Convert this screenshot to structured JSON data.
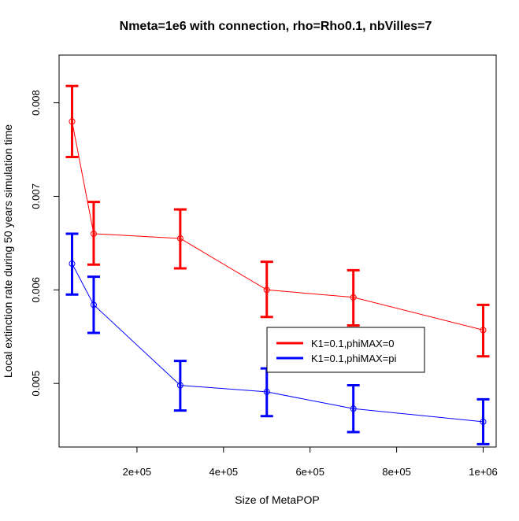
{
  "chart_data": {
    "type": "line",
    "title": "Nmeta=1e6  with connection, rho=Rho0.1, nbVilles=7",
    "xlabel": "Size of MetaPOP",
    "ylabel": "Local extinction rate during 50 years simulation time",
    "xlim": [
      20000,
      1030000
    ],
    "ylim": [
      0.00432,
      0.00851
    ],
    "x_ticks": [
      {
        "value": 200000,
        "label": "2e+05"
      },
      {
        "value": 400000,
        "label": "4e+05"
      },
      {
        "value": 600000,
        "label": "6e+05"
      },
      {
        "value": 800000,
        "label": "8e+05"
      },
      {
        "value": 1000000,
        "label": "1e+06"
      }
    ],
    "y_ticks": [
      {
        "value": 0.005,
        "label": "0.005"
      },
      {
        "value": 0.006,
        "label": "0.006"
      },
      {
        "value": 0.007,
        "label": "0.007"
      },
      {
        "value": 0.008,
        "label": "0.008"
      }
    ],
    "x": [
      50000,
      100000,
      300000,
      500000,
      700000,
      1000000
    ],
    "series": [
      {
        "name": "K1=0.1,phiMAX=0",
        "color": "#ff0000",
        "values": [
          0.0078,
          0.0066,
          0.00655,
          0.006,
          0.00592,
          0.00557
        ],
        "lower": [
          0.00742,
          0.00627,
          0.00623,
          0.00571,
          0.00562,
          0.00529
        ],
        "upper": [
          0.00818,
          0.00694,
          0.00686,
          0.0063,
          0.00621,
          0.00584
        ]
      },
      {
        "name": "K1=0.1,phiMAX=pi",
        "color": "#0000ff",
        "values": [
          0.00628,
          0.00584,
          0.00498,
          0.00491,
          0.00473,
          0.00459
        ],
        "lower": [
          0.00595,
          0.00554,
          0.00471,
          0.00465,
          0.00448,
          0.00435
        ],
        "upper": [
          0.0066,
          0.00614,
          0.00524,
          0.00516,
          0.00498,
          0.00483
        ]
      }
    ],
    "legend_position": "center-right",
    "grid": false
  }
}
